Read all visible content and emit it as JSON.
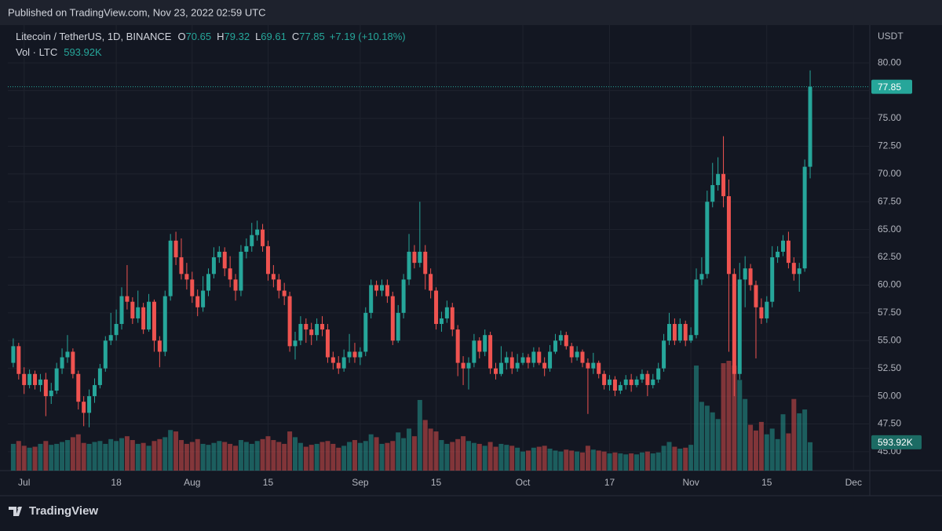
{
  "published": "Published on TradingView.com, Nov 23, 2022 02:59 UTC",
  "footer": "TradingView",
  "chart_data": {
    "type": "candlestick",
    "title": "Litecoin / TetherUS, 1D, BINANCE",
    "ohlc_labels": [
      "O",
      "H",
      "L",
      "C"
    ],
    "change": "+7.19 (+10.18%)",
    "volume_title": "Vol · LTC",
    "volume_label": "593.92K",
    "y_unit": "USDT",
    "up_color": "#26a69a",
    "down_color": "#ef5350",
    "grid": true,
    "ylim": [
      43.3,
      83.4
    ],
    "yticks": [
      {
        "value": 45,
        "label": "45.00"
      },
      {
        "value": 47.5,
        "label": "47.50"
      },
      {
        "value": 50,
        "label": "50.00"
      },
      {
        "value": 52.5,
        "label": "52.50"
      },
      {
        "value": 55,
        "label": "55.00"
      },
      {
        "value": 57.5,
        "label": "57.50"
      },
      {
        "value": 60,
        "label": "60.00"
      },
      {
        "value": 62.5,
        "label": "62.50"
      },
      {
        "value": 65,
        "label": "65.00"
      },
      {
        "value": 67.5,
        "label": "67.50"
      },
      {
        "value": 70,
        "label": "70.00"
      },
      {
        "value": 72.5,
        "label": "72.50"
      },
      {
        "value": 75,
        "label": "75.00"
      },
      {
        "value": 77.5,
        "label": "77.50"
      },
      {
        "value": 80,
        "label": "80.00"
      }
    ],
    "xlim": [
      "2022-06-28",
      "2022-12-04"
    ],
    "xticks": [
      {
        "value": "2022-07-01",
        "label": "Jul"
      },
      {
        "value": "2022-07-18",
        "label": "18"
      },
      {
        "value": "2022-08-01",
        "label": "Aug"
      },
      {
        "value": "2022-08-15",
        "label": "15"
      },
      {
        "value": "2022-09-01",
        "label": "Sep"
      },
      {
        "value": "2022-09-15",
        "label": "15"
      },
      {
        "value": "2022-10-01",
        "label": "Oct"
      },
      {
        "value": "2022-10-17",
        "label": "17"
      },
      {
        "value": "2022-11-01",
        "label": "Nov"
      },
      {
        "value": "2022-11-15",
        "label": "15"
      },
      {
        "value": "2022-12-01",
        "label": "Dec"
      }
    ],
    "x": [
      "2022-06-29",
      "2022-06-30",
      "2022-07-01",
      "2022-07-02",
      "2022-07-03",
      "2022-07-04",
      "2022-07-05",
      "2022-07-06",
      "2022-07-07",
      "2022-07-08",
      "2022-07-09",
      "2022-07-10",
      "2022-07-11",
      "2022-07-12",
      "2022-07-13",
      "2022-07-14",
      "2022-07-15",
      "2022-07-16",
      "2022-07-17",
      "2022-07-18",
      "2022-07-19",
      "2022-07-20",
      "2022-07-21",
      "2022-07-22",
      "2022-07-23",
      "2022-07-24",
      "2022-07-25",
      "2022-07-26",
      "2022-07-27",
      "2022-07-28",
      "2022-07-29",
      "2022-07-30",
      "2022-07-31",
      "2022-08-01",
      "2022-08-02",
      "2022-08-03",
      "2022-08-04",
      "2022-08-05",
      "2022-08-06",
      "2022-08-07",
      "2022-08-08",
      "2022-08-09",
      "2022-08-10",
      "2022-08-11",
      "2022-08-12",
      "2022-08-13",
      "2022-08-14",
      "2022-08-15",
      "2022-08-16",
      "2022-08-17",
      "2022-08-18",
      "2022-08-19",
      "2022-08-20",
      "2022-08-21",
      "2022-08-22",
      "2022-08-23",
      "2022-08-24",
      "2022-08-25",
      "2022-08-26",
      "2022-08-27",
      "2022-08-28",
      "2022-08-29",
      "2022-08-30",
      "2022-08-31",
      "2022-09-01",
      "2022-09-02",
      "2022-09-03",
      "2022-09-04",
      "2022-09-05",
      "2022-09-06",
      "2022-09-07",
      "2022-09-08",
      "2022-09-09",
      "2022-09-10",
      "2022-09-11",
      "2022-09-12",
      "2022-09-13",
      "2022-09-14",
      "2022-09-15",
      "2022-09-16",
      "2022-09-17",
      "2022-09-18",
      "2022-09-19",
      "2022-09-20",
      "2022-09-21",
      "2022-09-22",
      "2022-09-23",
      "2022-09-24",
      "2022-09-25",
      "2022-09-26",
      "2022-09-27",
      "2022-09-28",
      "2022-09-29",
      "2022-09-30",
      "2022-10-01",
      "2022-10-02",
      "2022-10-03",
      "2022-10-04",
      "2022-10-05",
      "2022-10-06",
      "2022-10-07",
      "2022-10-08",
      "2022-10-09",
      "2022-10-10",
      "2022-10-11",
      "2022-10-12",
      "2022-10-13",
      "2022-10-14",
      "2022-10-15",
      "2022-10-16",
      "2022-10-17",
      "2022-10-18",
      "2022-10-19",
      "2022-10-20",
      "2022-10-21",
      "2022-10-22",
      "2022-10-23",
      "2022-10-24",
      "2022-10-25",
      "2022-10-26",
      "2022-10-27",
      "2022-10-28",
      "2022-10-29",
      "2022-10-30",
      "2022-10-31",
      "2022-11-01",
      "2022-11-02",
      "2022-11-03",
      "2022-11-04",
      "2022-11-05",
      "2022-11-06",
      "2022-11-07",
      "2022-11-08",
      "2022-11-09",
      "2022-11-10",
      "2022-11-11",
      "2022-11-12",
      "2022-11-13",
      "2022-11-14",
      "2022-11-15",
      "2022-11-16",
      "2022-11-17",
      "2022-11-18",
      "2022-11-19",
      "2022-11-20",
      "2022-11-21",
      "2022-11-22",
      "2022-11-23"
    ],
    "open": [
      53.0,
      54.5,
      52.0,
      51.0,
      52.0,
      51.0,
      51.5,
      50.0,
      50.5,
      52.5,
      53.5,
      54.0,
      52.0,
      49.5,
      48.5,
      50.0,
      51.0,
      52.5,
      55.0,
      55.5,
      56.5,
      59.0,
      58.5,
      57.0,
      58.0,
      56.0,
      58.5,
      55.0,
      54.0,
      59.0,
      64.0,
      62.5,
      61.0,
      60.5,
      59.0,
      58.0,
      59.5,
      61.0,
      62.5,
      63.0,
      61.5,
      60.5,
      59.5,
      63.0,
      63.5,
      64.5,
      65.0,
      63.5,
      61.0,
      60.5,
      59.5,
      59.0,
      54.5,
      55.0,
      56.5,
      56.0,
      55.5,
      56.5,
      56.0,
      53.5,
      53.0,
      52.5,
      53.5,
      54.0,
      53.5,
      54.0,
      57.5,
      60.0,
      59.5,
      60.0,
      59.0,
      55.0,
      57.5,
      60.5,
      63.0,
      62.0,
      63.0,
      61.0,
      59.5,
      56.5,
      57.0,
      58.0,
      56.0,
      53.0,
      52.5,
      53.0,
      55.0,
      54.0,
      55.5,
      52.5,
      52.0,
      53.0,
      53.5,
      52.5,
      53.0,
      53.5,
      53.0,
      54.0,
      53.0,
      52.5,
      54.0,
      55.0,
      55.5,
      54.5,
      53.5,
      54.0,
      53.0,
      52.5,
      53.0,
      52.0,
      51.0,
      51.5,
      50.5,
      51.0,
      51.5,
      51.0,
      51.5,
      52.0,
      51.0,
      51.5,
      52.5,
      55.0,
      56.5,
      55.0,
      56.5,
      55.0,
      55.5,
      60.5,
      61.0,
      67.5,
      69.0,
      70.0,
      68.0,
      61.0,
      52.0,
      60.5,
      61.5,
      60.0,
      58.0,
      57.0,
      58.5,
      62.5,
      63.0,
      64.0,
      62.0,
      61.0,
      61.5,
      70.65
    ],
    "high": [
      55.2,
      54.8,
      52.6,
      52.4,
      52.3,
      52.0,
      52.1,
      51.2,
      53.0,
      54.3,
      55.5,
      54.3,
      52.3,
      50.0,
      50.6,
      51.6,
      52.9,
      55.4,
      57.5,
      57.8,
      59.8,
      61.8,
      58.9,
      59.5,
      58.4,
      59.2,
      58.7,
      55.4,
      59.5,
      64.6,
      64.8,
      64.2,
      62.0,
      61.2,
      59.6,
      60.8,
      61.5,
      63.4,
      63.5,
      63.4,
      62.6,
      61.0,
      63.6,
      64.2,
      65.6,
      65.8,
      65.5,
      64.0,
      61.8,
      61.0,
      60.2,
      59.4,
      55.8,
      57.2,
      57.0,
      56.6,
      57.0,
      57.2,
      56.5,
      54.0,
      53.6,
      54.2,
      55.6,
      54.8,
      54.4,
      58.0,
      60.5,
      60.4,
      60.5,
      60.5,
      59.4,
      58.2,
      61.0,
      64.6,
      63.6,
      67.5,
      63.6,
      61.5,
      59.8,
      57.6,
      58.6,
      58.4,
      56.4,
      53.6,
      53.5,
      55.6,
      55.3,
      56.0,
      55.8,
      53.0,
      54.5,
      54.0,
      54.0,
      53.8,
      53.9,
      53.8,
      54.4,
      54.4,
      53.5,
      54.6,
      55.6,
      55.9,
      55.8,
      54.8,
      54.5,
      54.2,
      53.4,
      53.9,
      53.2,
      52.3,
      51.9,
      51.8,
      51.3,
      51.9,
      52.0,
      51.8,
      52.4,
      52.3,
      52.0,
      53.0,
      55.6,
      57.5,
      57.0,
      57.0,
      56.8,
      56.2,
      61.5,
      62.5,
      68.5,
      71.0,
      71.5,
      73.4,
      69.5,
      61.5,
      62.0,
      62.6,
      61.9,
      60.4,
      58.8,
      59.0,
      63.5,
      63.5,
      64.5,
      64.8,
      62.5,
      62.0,
      71.3,
      79.32
    ],
    "low": [
      52.6,
      51.5,
      50.2,
      50.7,
      50.6,
      50.4,
      48.2,
      49.3,
      50.2,
      52.0,
      53.0,
      51.6,
      48.8,
      47.3,
      47.2,
      49.4,
      50.7,
      52.2,
      54.6,
      55.0,
      56.0,
      57.8,
      56.5,
      56.6,
      55.6,
      55.8,
      54.0,
      52.6,
      53.6,
      58.6,
      61.8,
      60.5,
      59.6,
      58.4,
      57.2,
      57.6,
      59.0,
      60.6,
      62.0,
      60.8,
      59.8,
      58.6,
      59.0,
      62.4,
      63.0,
      64.0,
      63.0,
      60.4,
      59.8,
      58.8,
      58.2,
      54.0,
      53.3,
      54.6,
      54.8,
      54.6,
      55.0,
      55.4,
      53.0,
      52.4,
      52.0,
      52.2,
      53.0,
      53.0,
      52.8,
      53.6,
      57.0,
      59.0,
      59.0,
      58.4,
      54.6,
      54.8,
      57.0,
      60.0,
      61.5,
      61.6,
      59.6,
      58.8,
      56.0,
      55.8,
      56.6,
      55.4,
      51.8,
      51.0,
      50.6,
      52.6,
      53.4,
      53.6,
      52.0,
      51.5,
      51.8,
      52.4,
      52.0,
      52.2,
      52.8,
      52.5,
      52.6,
      52.8,
      51.8,
      52.2,
      53.8,
      54.6,
      54.2,
      53.0,
      53.2,
      52.6,
      48.4,
      52.0,
      51.6,
      50.6,
      50.5,
      50.0,
      50.2,
      50.6,
      50.4,
      50.8,
      51.2,
      50.0,
      50.7,
      51.2,
      52.2,
      54.6,
      54.6,
      54.8,
      54.5,
      54.8,
      55.2,
      60.0,
      60.6,
      67.0,
      68.5,
      67.0,
      54.0,
      50.0,
      51.5,
      58.0,
      59.5,
      53.4,
      56.5,
      56.6,
      58.0,
      62.0,
      62.6,
      61.5,
      60.4,
      59.4,
      61.2,
      69.61
    ],
    "close": [
      54.5,
      52.0,
      51.0,
      52.0,
      51.0,
      51.5,
      50.0,
      50.5,
      52.5,
      53.5,
      54.0,
      52.0,
      49.5,
      48.5,
      50.0,
      51.0,
      52.5,
      55.0,
      55.5,
      56.5,
      59.0,
      58.5,
      57.0,
      58.0,
      56.0,
      58.5,
      55.0,
      54.0,
      59.0,
      64.0,
      62.5,
      61.0,
      60.5,
      59.0,
      58.0,
      59.5,
      61.0,
      62.5,
      63.0,
      61.5,
      60.5,
      59.5,
      63.0,
      63.5,
      64.5,
      65.0,
      63.5,
      61.0,
      60.5,
      59.5,
      59.0,
      54.5,
      55.0,
      56.5,
      56.0,
      55.5,
      56.5,
      56.0,
      53.5,
      53.0,
      52.5,
      53.5,
      54.0,
      53.5,
      54.0,
      57.5,
      60.0,
      59.5,
      60.0,
      59.0,
      55.0,
      57.5,
      60.5,
      63.0,
      62.0,
      63.0,
      61.0,
      59.5,
      56.5,
      57.0,
      58.0,
      56.0,
      53.0,
      52.5,
      53.0,
      55.0,
      54.0,
      55.5,
      52.5,
      52.0,
      53.0,
      53.5,
      52.5,
      53.0,
      53.5,
      53.0,
      54.0,
      53.0,
      52.5,
      54.0,
      55.0,
      55.5,
      54.5,
      53.5,
      54.0,
      53.0,
      52.5,
      53.0,
      52.0,
      51.0,
      51.5,
      50.5,
      51.0,
      51.5,
      51.0,
      51.5,
      52.0,
      51.0,
      51.5,
      52.5,
      55.0,
      56.5,
      55.0,
      56.5,
      55.0,
      55.5,
      60.5,
      61.0,
      67.5,
      69.0,
      70.0,
      68.0,
      61.0,
      52.0,
      60.5,
      61.5,
      60.0,
      58.0,
      57.0,
      58.5,
      62.5,
      63.0,
      64.0,
      62.0,
      61.0,
      61.5,
      70.65,
      77.85
    ],
    "volume": [
      560000,
      620000,
      520000,
      480000,
      500000,
      560000,
      620000,
      540000,
      560000,
      600000,
      640000,
      700000,
      760000,
      580000,
      560000,
      600000,
      620000,
      560000,
      660000,
      620000,
      680000,
      720000,
      640000,
      560000,
      580000,
      520000,
      620000,
      660000,
      700000,
      850000,
      820000,
      640000,
      560000,
      600000,
      660000,
      560000,
      540000,
      580000,
      620000,
      600000,
      560000,
      520000,
      640000,
      600000,
      560000,
      620000,
      660000,
      720000,
      640000,
      600000,
      560000,
      820000,
      700000,
      580000,
      500000,
      540000,
      560000,
      600000,
      620000,
      560000,
      480000,
      520000,
      600000,
      640000,
      580000,
      620000,
      760000,
      700000,
      560000,
      580000,
      620000,
      800000,
      680000,
      880000,
      720000,
      1480000,
      1060000,
      880000,
      820000,
      640000,
      560000,
      600000,
      660000,
      720000,
      620000,
      580000,
      560000,
      520000,
      600000,
      500000,
      560000,
      540000,
      520000,
      480000,
      400000,
      420000,
      480000,
      500000,
      520000,
      460000,
      420000,
      400000,
      440000,
      420000,
      400000,
      380000,
      520000,
      440000,
      420000,
      400000,
      360000,
      380000,
      360000,
      340000,
      360000,
      340000,
      380000,
      400000,
      360000,
      380000,
      520000,
      600000,
      500000,
      460000,
      480000,
      540000,
      2200000,
      1440000,
      1360000,
      1220000,
      1080000,
      2250000,
      2300000,
      2200000,
      1900000,
      1500000,
      960000,
      840000,
      1020000,
      760000,
      880000,
      660000,
      1180000,
      780000,
      1500000,
      1200000,
      1280000,
      593920
    ]
  }
}
